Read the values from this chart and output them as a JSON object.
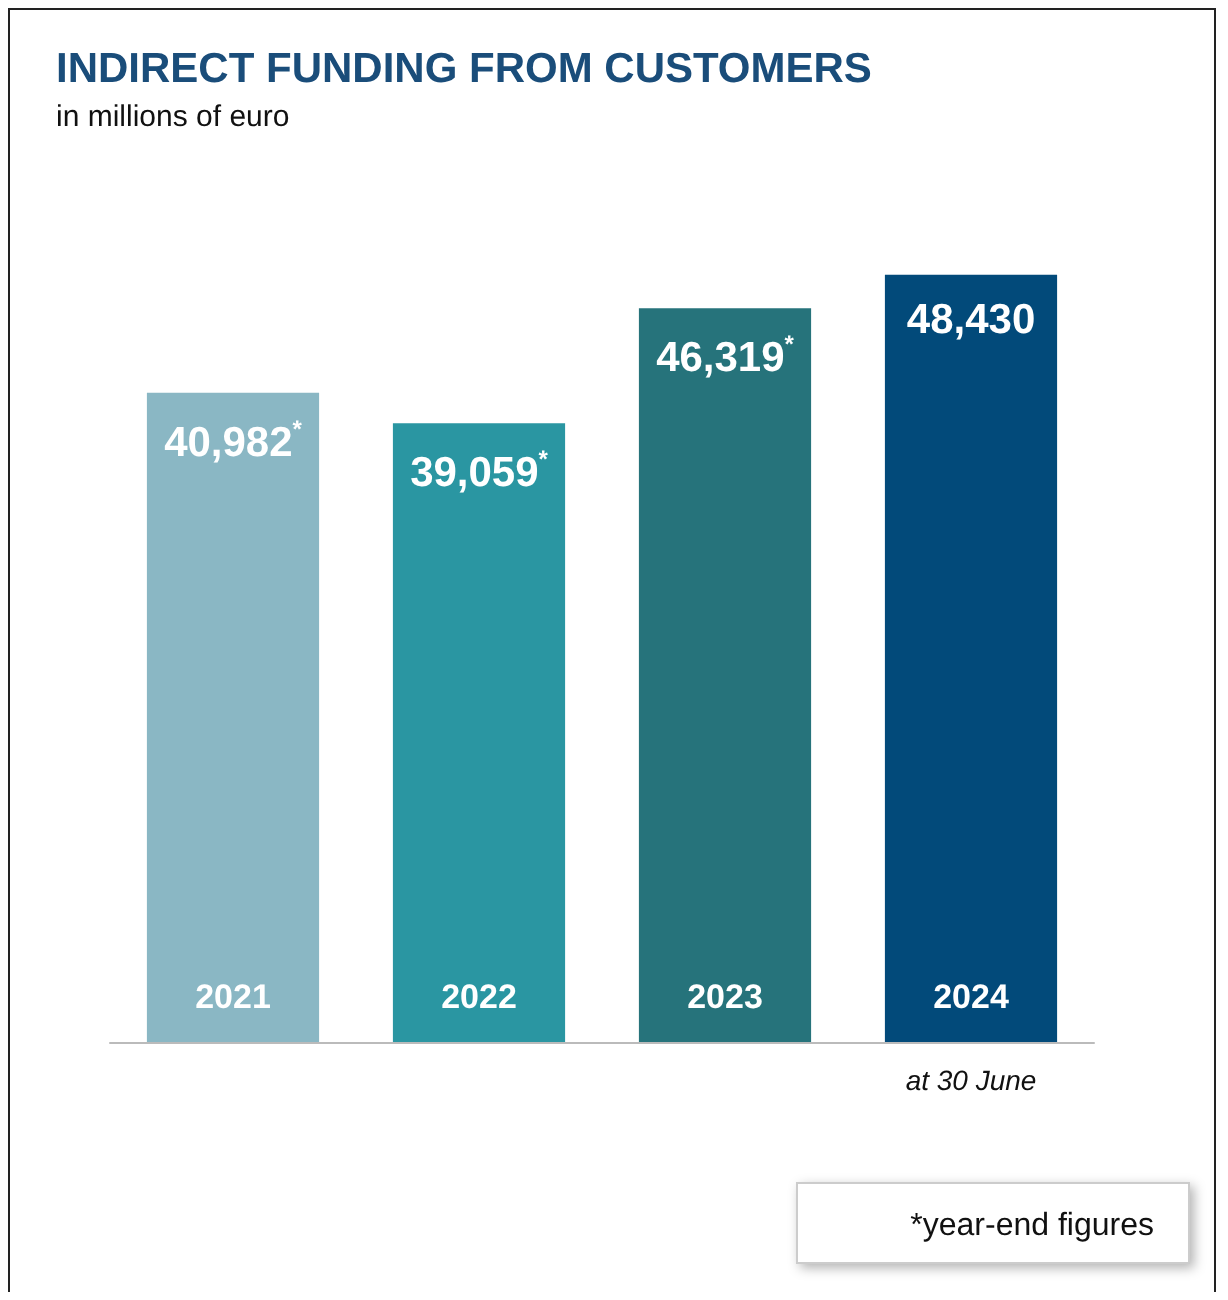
{
  "chart_data": {
    "type": "bar",
    "title": "INDIRECT FUNDING FROM CUSTOMERS",
    "subtitle": "in millions of euro",
    "categories": [
      "2021",
      "2022",
      "2023",
      "2024"
    ],
    "values": [
      40982,
      39059,
      46319,
      48430
    ],
    "colors": [
      "#8ab7c4",
      "#2a96a2",
      "#26737b",
      "#024a7a"
    ],
    "value_labels": [
      "40,982$^{*}$",
      "39,059$^{*}$",
      "46,319$^{*}$",
      "48,430"
    ],
    "annotations": [
      "at 30 June",
      "*year-end figures"
    ]
  }
}
